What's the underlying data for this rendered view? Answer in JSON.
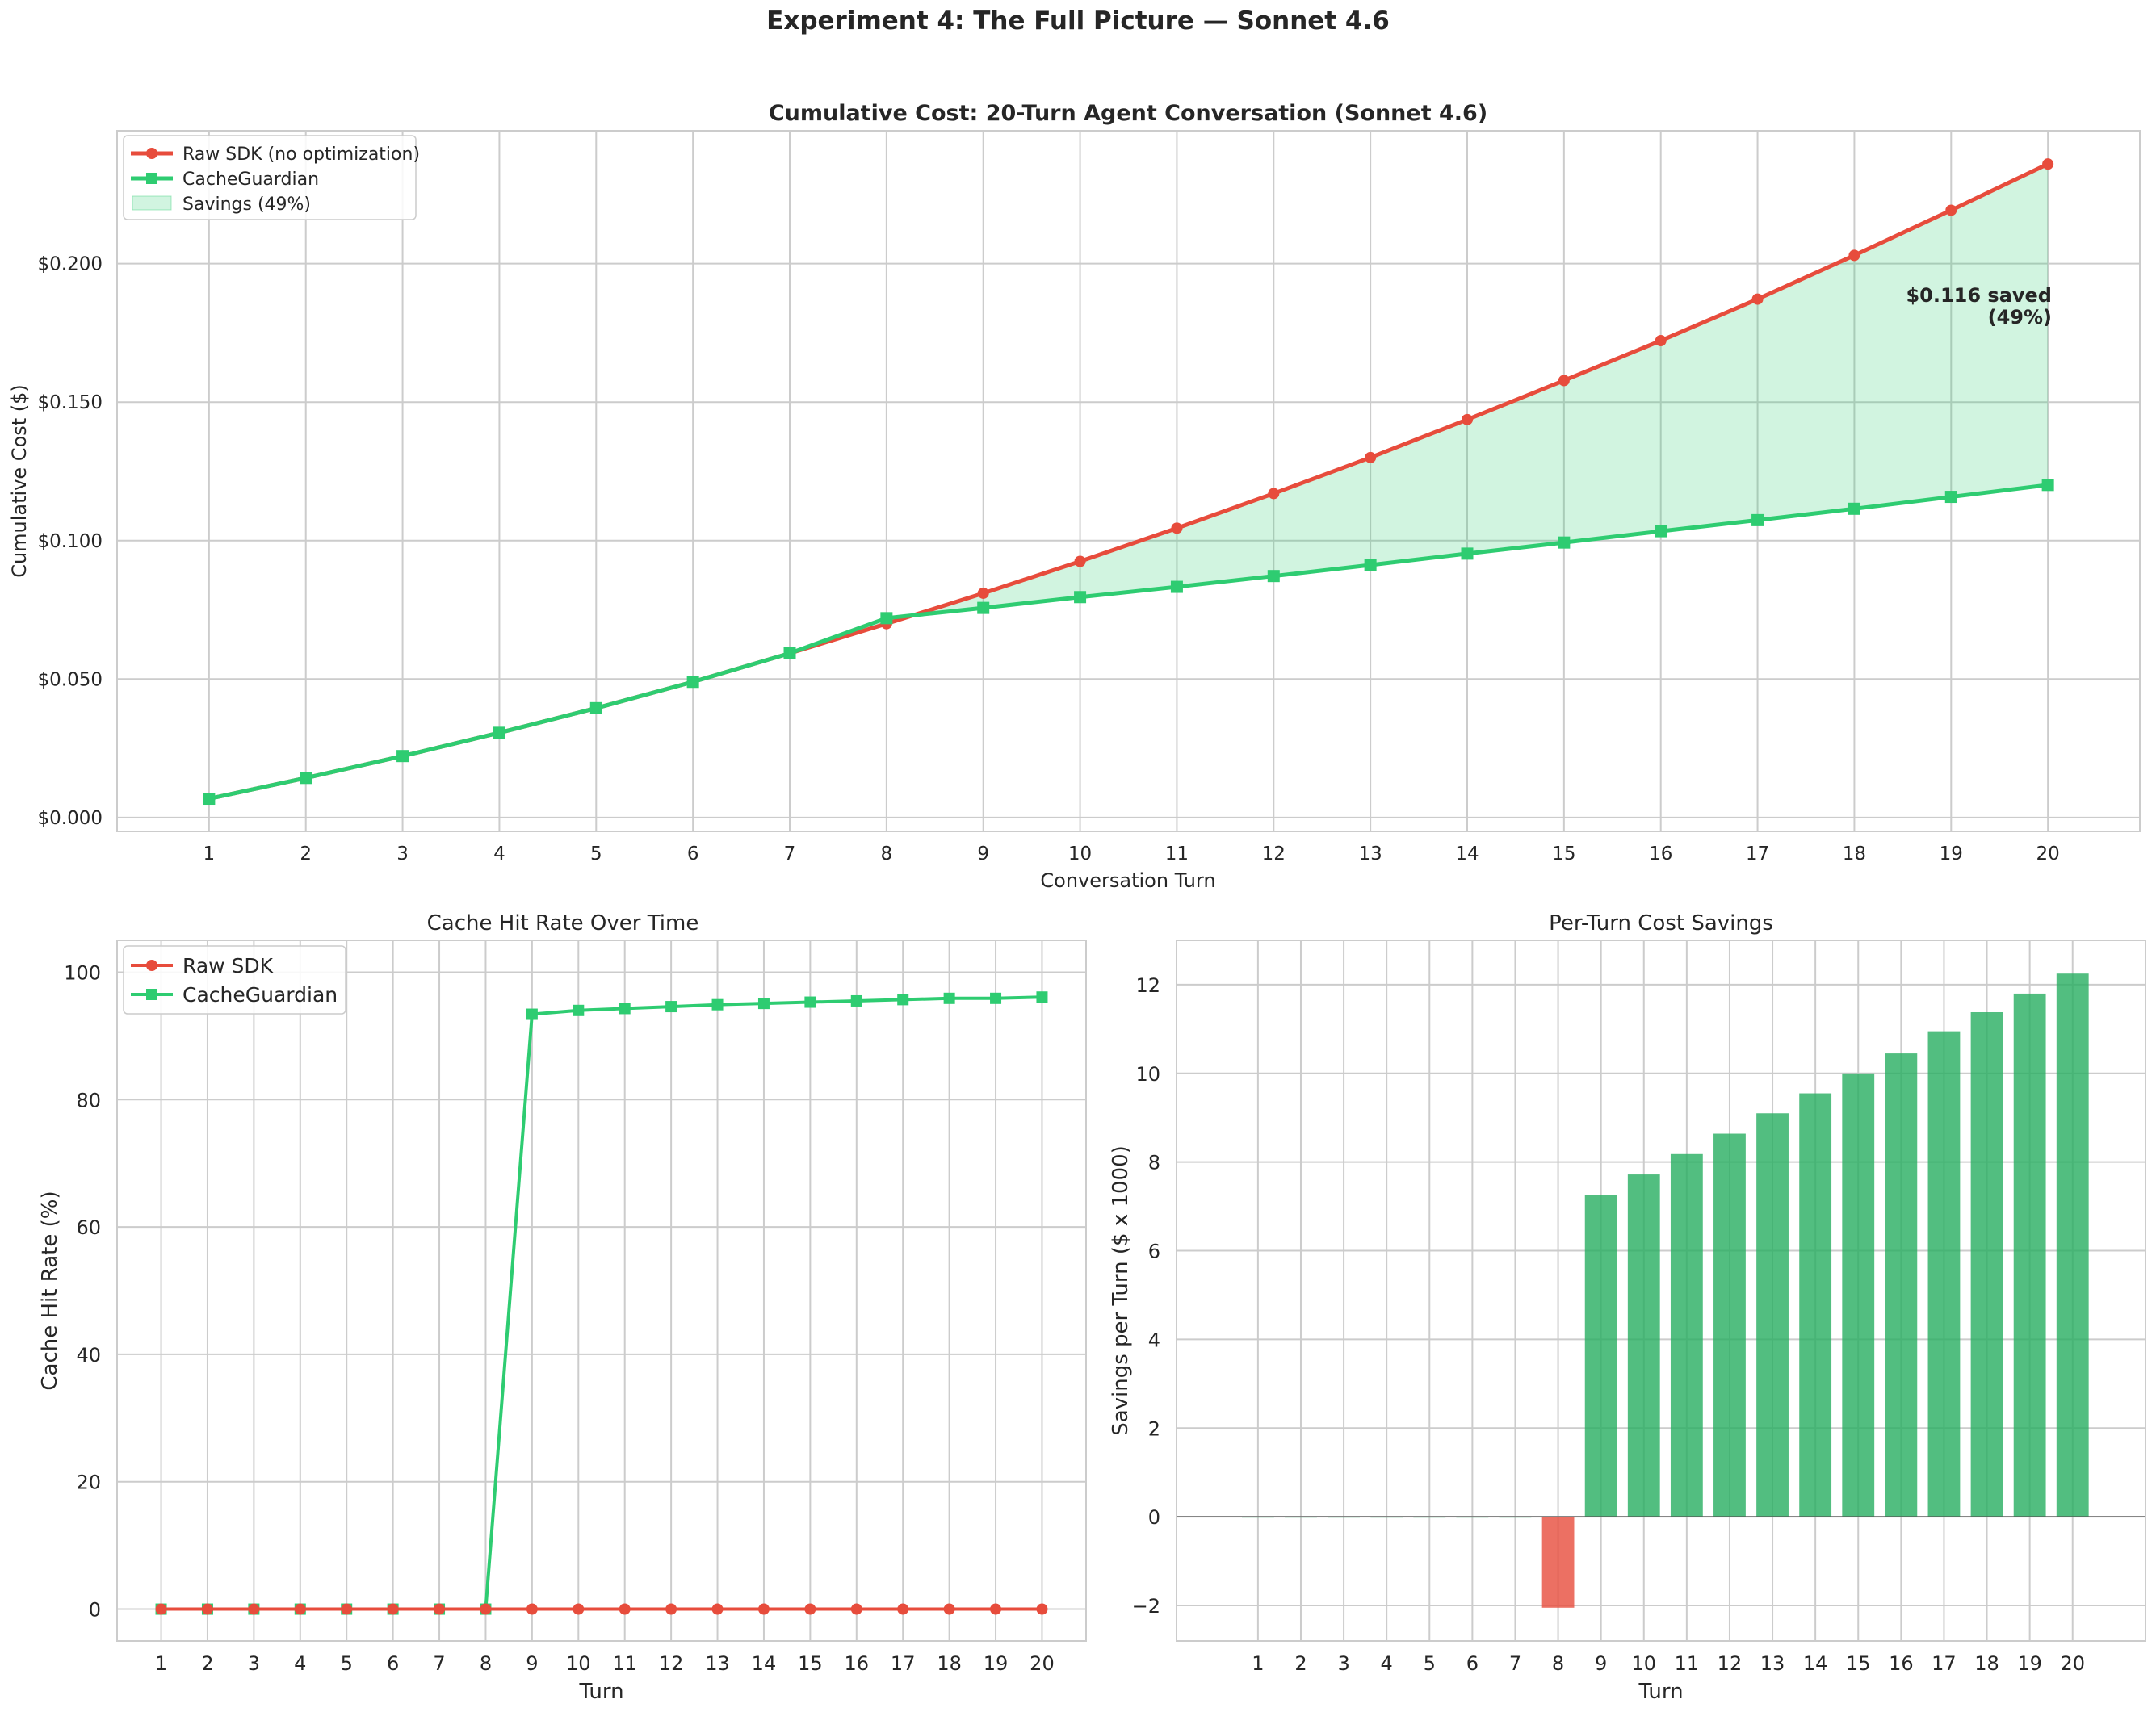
{
  "suptitle": "Experiment 4: The Full Picture — Sonnet 4.6",
  "chart_data": [
    {
      "type": "line",
      "title": "Cumulative Cost: 20-Turn Agent Conversation (Sonnet 4.6)",
      "xlabel": "Conversation Turn",
      "ylabel": "Cumulative Cost ($)",
      "x": [
        1,
        2,
        3,
        4,
        5,
        6,
        7,
        8,
        9,
        10,
        11,
        12,
        13,
        14,
        15,
        16,
        17,
        18,
        19,
        20
      ],
      "ylim": [
        -0.005,
        0.248
      ],
      "yticks": [
        0.0,
        0.05,
        0.1,
        0.15,
        0.2
      ],
      "ytick_labels": [
        "$0.000",
        "$0.050",
        "$0.100",
        "$0.150",
        "$0.200"
      ],
      "grid": true,
      "legend": "upper-left",
      "series": [
        {
          "name": "Raw SDK (no optimization)",
          "color": "#e74c3c",
          "marker": "circle",
          "values": [
            0.0068,
            0.0143,
            0.0222,
            0.0306,
            0.0395,
            0.049,
            0.0593,
            0.07,
            0.081,
            0.0925,
            0.1045,
            0.117,
            0.13,
            0.1437,
            0.1578,
            0.1722,
            0.1872,
            0.203,
            0.2193,
            0.236
          ]
        },
        {
          "name": "CacheGuardian",
          "color": "#2ecc71",
          "marker": "square",
          "values": [
            0.0068,
            0.0143,
            0.0222,
            0.0306,
            0.0395,
            0.049,
            0.0593,
            0.072,
            0.0757,
            0.0796,
            0.0833,
            0.0872,
            0.0912,
            0.0953,
            0.0993,
            0.1034,
            0.1074,
            0.1115,
            0.1158,
            0.1201
          ]
        }
      ],
      "fill": {
        "name": "Savings (49%)",
        "color": "#2ecc71"
      },
      "annotation": {
        "line1": "$0.116 saved",
        "line2": "(49%)",
        "color": "#27ae60"
      }
    },
    {
      "type": "line",
      "title": "Cache Hit Rate Over Time",
      "xlabel": "Turn",
      "ylabel": "Cache Hit Rate (%)",
      "x": [
        1,
        2,
        3,
        4,
        5,
        6,
        7,
        8,
        9,
        10,
        11,
        12,
        13,
        14,
        15,
        16,
        17,
        18,
        19,
        20
      ],
      "ylim": [
        -5,
        105
      ],
      "yticks": [
        0,
        20,
        40,
        60,
        80,
        100
      ],
      "grid": true,
      "legend": "upper-left",
      "series": [
        {
          "name": "Raw SDK",
          "color": "#e74c3c",
          "marker": "circle",
          "values": [
            0,
            0,
            0,
            0,
            0,
            0,
            0,
            0,
            0,
            0,
            0,
            0,
            0,
            0,
            0,
            0,
            0,
            0,
            0,
            0
          ]
        },
        {
          "name": "CacheGuardian",
          "color": "#2ecc71",
          "marker": "square",
          "values": [
            0,
            0,
            0,
            0,
            0,
            0,
            0,
            0,
            93.4,
            94.0,
            94.3,
            94.6,
            94.9,
            95.1,
            95.3,
            95.5,
            95.7,
            95.9,
            95.9,
            96.1
          ]
        }
      ]
    },
    {
      "type": "bar",
      "title": "Per-Turn Cost Savings",
      "xlabel": "Turn",
      "ylabel": "Savings per Turn ($ x 1000)",
      "categories": [
        "1",
        "2",
        "3",
        "4",
        "5",
        "6",
        "7",
        "8",
        "9",
        "10",
        "11",
        "12",
        "13",
        "14",
        "15",
        "16",
        "17",
        "18",
        "19",
        "20"
      ],
      "values": [
        0,
        0,
        0,
        0,
        0,
        0,
        0,
        -2.05,
        7.25,
        7.72,
        8.18,
        8.64,
        9.1,
        9.55,
        10.0,
        10.45,
        10.95,
        11.38,
        11.8,
        12.25
      ],
      "ylim": [
        -2.8,
        13.0
      ],
      "yticks": [
        -2,
        0,
        2,
        4,
        6,
        8,
        10,
        12
      ],
      "grid": true,
      "positive_color": "#27ae60",
      "negative_color": "#e74c3c"
    }
  ]
}
